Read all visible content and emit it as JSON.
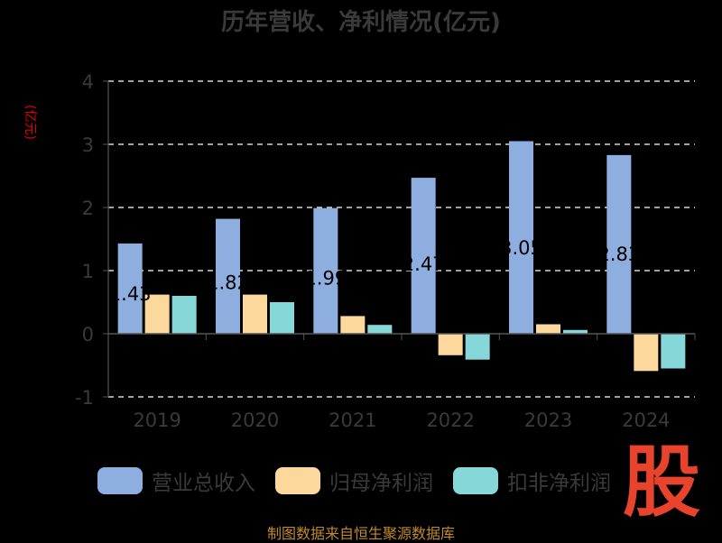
{
  "chart_data": {
    "type": "bar",
    "title": "历年营收、净利情况(亿元)",
    "unit_label": "(亿元)",
    "categories": [
      "2019",
      "2020",
      "2021",
      "2022",
      "2023",
      "2024"
    ],
    "series": [
      {
        "name": "营业总收入",
        "color": "#8eaee0",
        "values": [
          1.43,
          1.82,
          1.99,
          2.47,
          3.05,
          2.83
        ]
      },
      {
        "name": "归母净利润",
        "color": "#fdd89c",
        "values": [
          0.62,
          0.62,
          0.28,
          -0.34,
          0.15,
          -0.59
        ]
      },
      {
        "name": "扣非净利润",
        "color": "#86d8d8",
        "values": [
          0.6,
          0.5,
          0.14,
          -0.41,
          0.06,
          -0.55
        ]
      }
    ],
    "data_labels": [
      "1.43",
      "1.82",
      "1.99",
      "2.47",
      "3.05",
      "2.83"
    ],
    "ylim": [
      -1,
      4
    ],
    "yticks": [
      -1,
      0,
      1,
      2,
      3,
      4
    ],
    "grid": true,
    "legend_position": "bottom"
  },
  "source_text": "制图数据来自恒生聚源数据库",
  "logo_text": "股"
}
